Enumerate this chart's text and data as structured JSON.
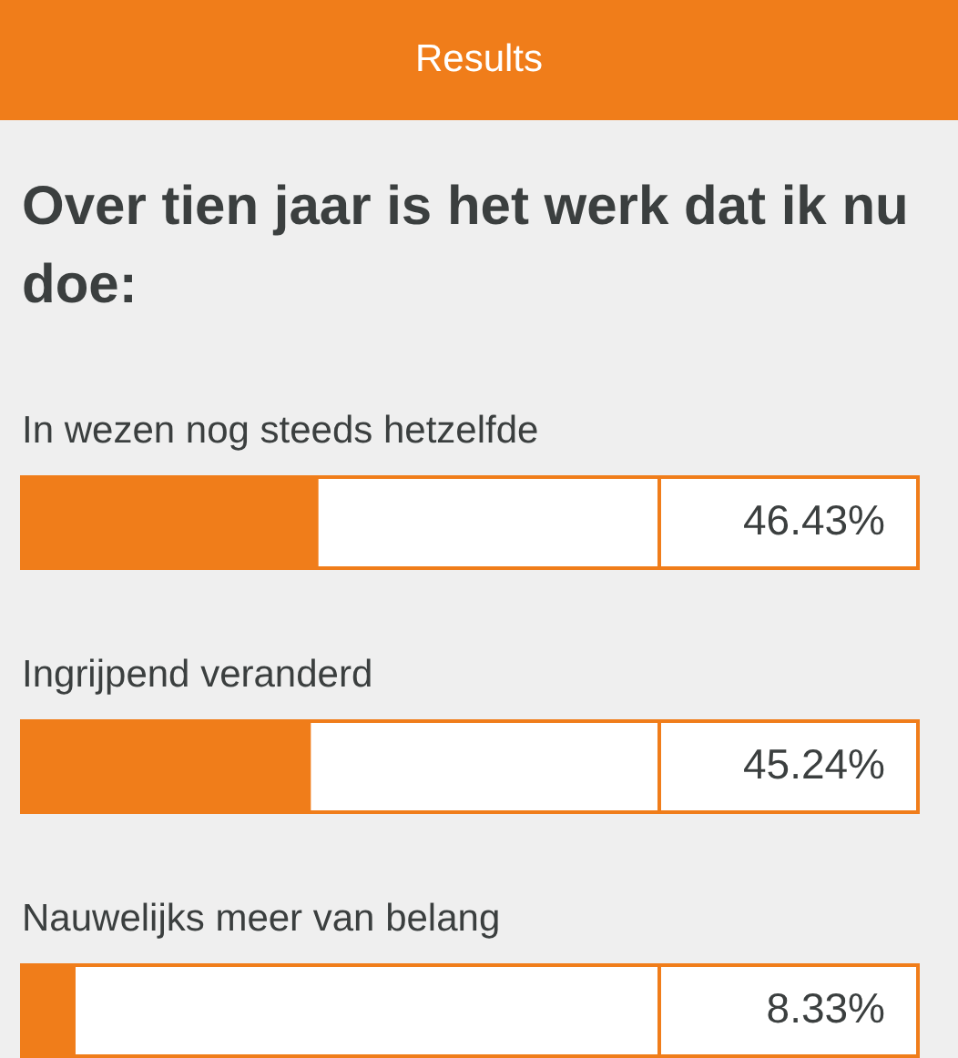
{
  "chart_data": {
    "type": "bar",
    "orientation": "horizontal",
    "title": "Results",
    "subtitle": "Over tien jaar is het werk dat ik nu doe:",
    "categories": [
      "In wezen nog steeds hetzelfde",
      "Ingrijpend veranderd",
      "Nauwelijks meer van belang"
    ],
    "values": [
      46.43,
      45.24,
      8.33
    ],
    "value_labels": [
      "46.43%",
      "45.24%",
      "8.33%"
    ],
    "color": "#f07d1a",
    "xlim": [
      0,
      100
    ],
    "tick_labels": false,
    "legend": false
  }
}
